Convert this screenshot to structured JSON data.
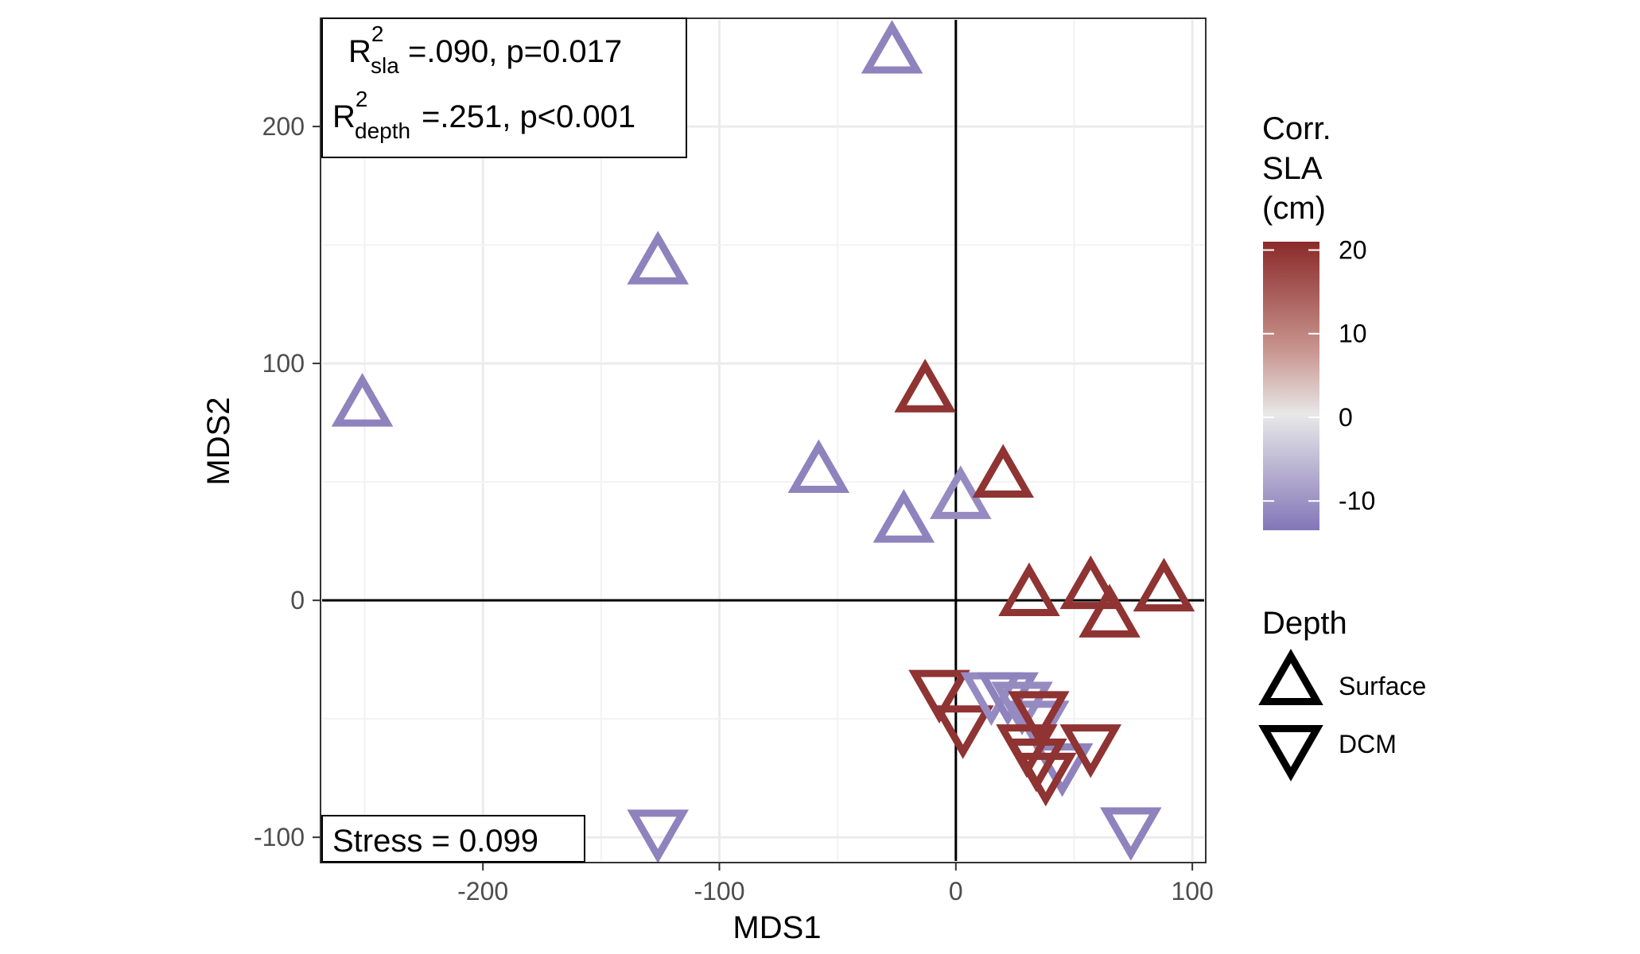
{
  "chart_data": {
    "type": "scatter",
    "xlabel": "MDS1",
    "ylabel": "MDS2",
    "xlim": [
      -268,
      105
    ],
    "ylim": [
      -110,
      245
    ],
    "x_ticks": [
      -200,
      -100,
      0,
      100
    ],
    "y_ticks": [
      -100,
      0,
      100,
      200
    ],
    "x_tick_labels": [
      "-200",
      "-100",
      "0",
      "100"
    ],
    "y_tick_labels": [
      "-100",
      "0",
      "100",
      "200"
    ],
    "grid": true,
    "reference_lines": {
      "x": 0,
      "y": 0
    },
    "annotations": {
      "r2_sla": {
        "R": "R",
        "sup": "2",
        "sub": "sla",
        "rest": "=.090, p=0.017"
      },
      "r2_depth": {
        "R": "R",
        "sup": "2",
        "sub": "depth",
        "rest": "=.251, p<0.001"
      },
      "stress": "Stress = 0.099"
    },
    "color_legend": {
      "title_lines": [
        "Corr.",
        "SLA",
        "(cm)"
      ],
      "min": -13.5,
      "max": 21,
      "ticks": [
        20,
        10,
        0,
        -10
      ],
      "tick_labels": [
        "20",
        "10",
        "0",
        "-10"
      ],
      "colors": {
        "high": "#8b2a2a",
        "mid": "#e8e8e8",
        "low": "#8376b8"
      }
    },
    "shape_legend": {
      "title": "Depth",
      "entries": [
        {
          "label": "Surface",
          "shape": "triangle-up"
        },
        {
          "label": "DCM",
          "shape": "triangle-down"
        }
      ]
    },
    "points": [
      {
        "x": -27,
        "y": 230,
        "depth": "Surface",
        "sla": -12
      },
      {
        "x": -126,
        "y": 141,
        "depth": "Surface",
        "sla": -12
      },
      {
        "x": -251,
        "y": 81,
        "depth": "Surface",
        "sla": -12
      },
      {
        "x": -13,
        "y": 87,
        "depth": "Surface",
        "sla": 20
      },
      {
        "x": -58,
        "y": 53,
        "depth": "Surface",
        "sla": -12
      },
      {
        "x": -22,
        "y": 32,
        "depth": "Surface",
        "sla": -12
      },
      {
        "x": 2,
        "y": 42,
        "depth": "Surface",
        "sla": -11
      },
      {
        "x": 20,
        "y": 51,
        "depth": "Surface",
        "sla": 20
      },
      {
        "x": 31,
        "y": 1,
        "depth": "Surface",
        "sla": 20
      },
      {
        "x": 57,
        "y": 4,
        "depth": "Surface",
        "sla": 20
      },
      {
        "x": 65,
        "y": -8,
        "depth": "Surface",
        "sla": 20
      },
      {
        "x": 88,
        "y": 3,
        "depth": "Surface",
        "sla": 20
      },
      {
        "x": -126,
        "y": -96,
        "depth": "DCM",
        "sla": -12
      },
      {
        "x": 74,
        "y": -95,
        "depth": "DCM",
        "sla": -12
      },
      {
        "x": -7,
        "y": -37,
        "depth": "DCM",
        "sla": 20
      },
      {
        "x": 3,
        "y": -52,
        "depth": "DCM",
        "sla": 20
      },
      {
        "x": 15,
        "y": -38,
        "depth": "DCM",
        "sla": -11
      },
      {
        "x": 22,
        "y": -38,
        "depth": "DCM",
        "sla": -12
      },
      {
        "x": 28,
        "y": -42,
        "depth": "DCM",
        "sla": -11
      },
      {
        "x": 35,
        "y": -50,
        "depth": "DCM",
        "sla": -11
      },
      {
        "x": 45,
        "y": -68,
        "depth": "DCM",
        "sla": -12
      },
      {
        "x": 35,
        "y": -46,
        "depth": "DCM",
        "sla": 20
      },
      {
        "x": 30,
        "y": -60,
        "depth": "DCM",
        "sla": 20
      },
      {
        "x": 34,
        "y": -66,
        "depth": "DCM",
        "sla": 20
      },
      {
        "x": 38,
        "y": -72,
        "depth": "DCM",
        "sla": 20
      },
      {
        "x": 57,
        "y": -60,
        "depth": "DCM",
        "sla": 20
      }
    ]
  }
}
